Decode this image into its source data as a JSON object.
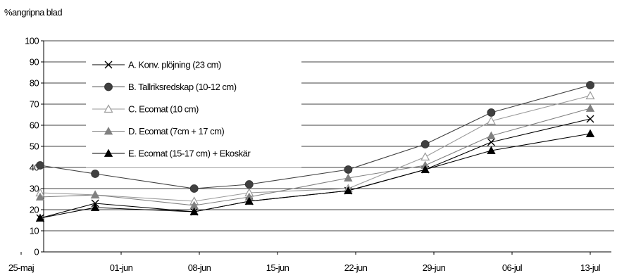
{
  "chart_data": {
    "type": "line",
    "title": "",
    "ylabel": "%angripna blad",
    "xlabel": "",
    "categories": [
      "25-maj",
      "01-jun",
      "08-jun",
      "15-jun",
      "22-jun",
      "29-jun",
      "06-jul",
      "13-jul"
    ],
    "x_dates": [
      "2023-05-25",
      "2023-05-30",
      "2023-06-08",
      "2023-06-13",
      "2023-06-22",
      "2023-06-29",
      "2023-07-05",
      "2023-07-14"
    ],
    "ylim": [
      0,
      100
    ],
    "yticks": [
      "0",
      "10",
      "20",
      "30",
      "40",
      "50",
      "60",
      "70",
      "80",
      "90",
      "100"
    ],
    "grid": true,
    "legend_position": "top-left",
    "series": [
      {
        "name": "A. Konv. plöjning (23 cm)",
        "marker": "x",
        "color": "#000000",
        "values": [
          16,
          23,
          19,
          24,
          29,
          39,
          52,
          63
        ]
      },
      {
        "name": "B. Tallriksredskap (10-12 cm)",
        "marker": "circle",
        "color": "#404040",
        "values": [
          41,
          37,
          30,
          32,
          39,
          51,
          66,
          79
        ]
      },
      {
        "name": "C. Ecomat (10 cm)",
        "marker": "triangle-open",
        "color": "#9a9a9a",
        "values": [
          28,
          27,
          24,
          28,
          30,
          45,
          62,
          74
        ]
      },
      {
        "name": "D. Ecomat (7cm + 17 cm)",
        "marker": "triangle-gray",
        "color": "#808080",
        "values": [
          26,
          27,
          22,
          26,
          35,
          41,
          55,
          68
        ]
      },
      {
        "name": "E. Ecomat (15-17 cm) + Ekoskär",
        "marker": "triangle-filled",
        "color": "#000000",
        "values": [
          16,
          21,
          19,
          24,
          29,
          39,
          48,
          56
        ]
      }
    ]
  }
}
